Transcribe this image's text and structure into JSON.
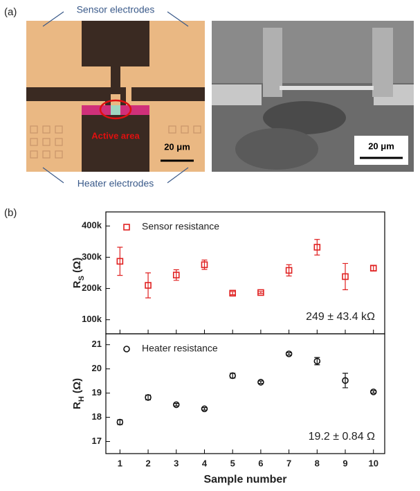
{
  "panel_labels": [
    "(a)",
    "(b)"
  ],
  "micrograph": {
    "top_label": "Sensor electrodes",
    "bottom_label": "Heater electrodes",
    "active_label": "Active area",
    "scale_bar": "20 μm"
  },
  "sem": {
    "scale_bar": "20 μm"
  },
  "chart_data": [
    {
      "type": "scatter",
      "ylabel": [
        "R",
        "S",
        " (Ω)"
      ],
      "annotation": "249 ± 43.4 kΩ",
      "legend": "upper left",
      "marker": "square",
      "x": [
        1,
        2,
        3,
        4,
        5,
        6,
        7,
        8,
        9,
        10
      ],
      "series": [
        {
          "name": "Sensor resistance",
          "color": "#e02020",
          "values": [
            287000,
            210000,
            243000,
            276000,
            185000,
            187000,
            258000,
            332000,
            238000,
            265000
          ],
          "errors": [
            45000,
            40000,
            17000,
            15000,
            5000,
            3000,
            18000,
            25000,
            42000,
            8000
          ]
        }
      ],
      "xlim": [
        0.5,
        10.4
      ],
      "ylim": [
        55000,
        445000
      ],
      "yticks": [
        {
          "value": 100000,
          "label": "100k"
        },
        {
          "value": 200000,
          "label": "200k"
        },
        {
          "value": 300000,
          "label": "300k"
        },
        {
          "value": 400000,
          "label": "400k"
        }
      ]
    },
    {
      "type": "scatter",
      "ylabel": [
        "R",
        "H",
        " (Ω)"
      ],
      "xlabel": "Sample number",
      "annotation": "19.2 ± 0.84 Ω",
      "legend": "upper left",
      "marker": "circle",
      "x": [
        1,
        2,
        3,
        4,
        5,
        6,
        7,
        8,
        9,
        10
      ],
      "series": [
        {
          "name": "Heater resistance",
          "color": "#111111",
          "values": [
            17.8,
            18.82,
            18.52,
            18.35,
            19.72,
            19.45,
            20.62,
            20.32,
            19.52,
            19.05
          ],
          "errors": [
            0.1,
            0.1,
            0.05,
            0.05,
            0.1,
            0.05,
            0.05,
            0.15,
            0.3,
            0.05
          ]
        }
      ],
      "xlim": [
        0.5,
        10.4
      ],
      "ylim": [
        16.5,
        21.45
      ],
      "xticks": [
        1,
        2,
        3,
        4,
        5,
        6,
        7,
        8,
        9,
        10
      ],
      "yticks": [
        17,
        18,
        19,
        20,
        21
      ]
    }
  ]
}
